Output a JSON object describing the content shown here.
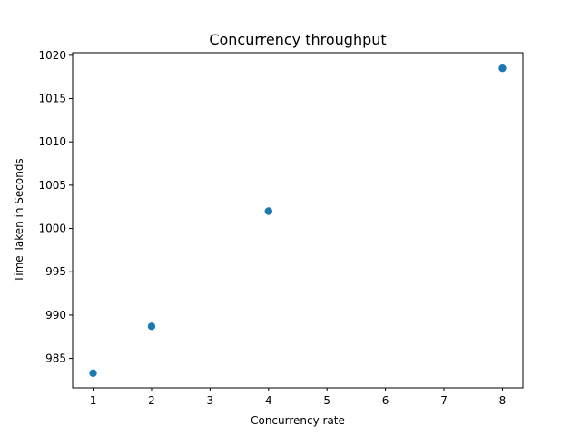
{
  "chart_data": {
    "type": "scatter",
    "title": "Concurrency throughput",
    "xlabel": "Concurrency rate",
    "ylabel": "Time Taken in Seconds",
    "x": [
      1,
      2,
      4,
      8
    ],
    "y": [
      983.3,
      988.7,
      1002.0,
      1018.5
    ],
    "xlim": [
      0.65,
      8.35
    ],
    "ylim": [
      981.6,
      1020.3
    ],
    "xticks": [
      1,
      2,
      3,
      4,
      5,
      6,
      7,
      8
    ],
    "yticks": [
      985,
      990,
      995,
      1000,
      1005,
      1010,
      1015,
      1020
    ],
    "grid": false,
    "marker_color": "#1f77b4"
  }
}
